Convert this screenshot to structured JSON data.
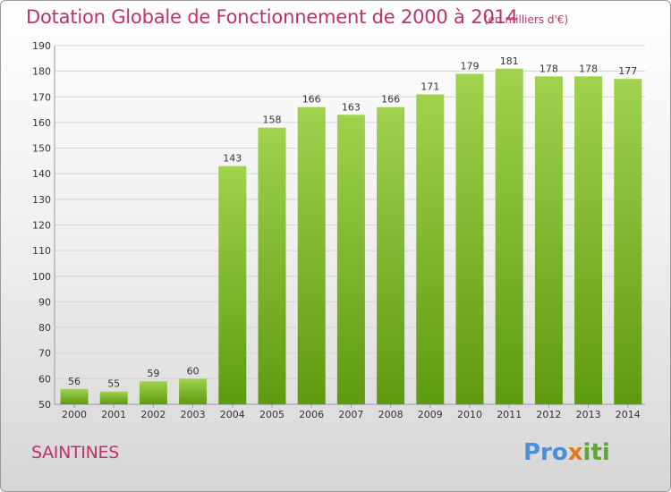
{
  "title": "Dotation Globale de Fonctionnement de 2000 à 2014",
  "unit_note": "(en milliers d'€)",
  "commune": "SAINTINES",
  "logo": {
    "part1": "Pro",
    "part2": "x",
    "part3": "iti"
  },
  "colors": {
    "title": "#c0306b",
    "bar_top": "#a0d24e",
    "bar_bottom": "#5e9a10"
  },
  "chart_data": {
    "type": "bar",
    "title": "Dotation Globale de Fonctionnement de 2000 à 2014",
    "subtitle": "(en milliers d'€)",
    "xlabel": "",
    "ylabel": "",
    "categories": [
      "2000",
      "2001",
      "2002",
      "2003",
      "2004",
      "2005",
      "2006",
      "2007",
      "2008",
      "2009",
      "2010",
      "2011",
      "2012",
      "2013",
      "2014"
    ],
    "values": [
      56,
      55,
      59,
      60,
      143,
      158,
      166,
      163,
      166,
      171,
      179,
      181,
      178,
      178,
      177
    ],
    "ylim": [
      50,
      190
    ],
    "yticks": [
      50,
      60,
      70,
      80,
      90,
      100,
      110,
      120,
      130,
      140,
      150,
      160,
      170,
      180,
      190
    ],
    "grid": true,
    "legend": "none"
  }
}
